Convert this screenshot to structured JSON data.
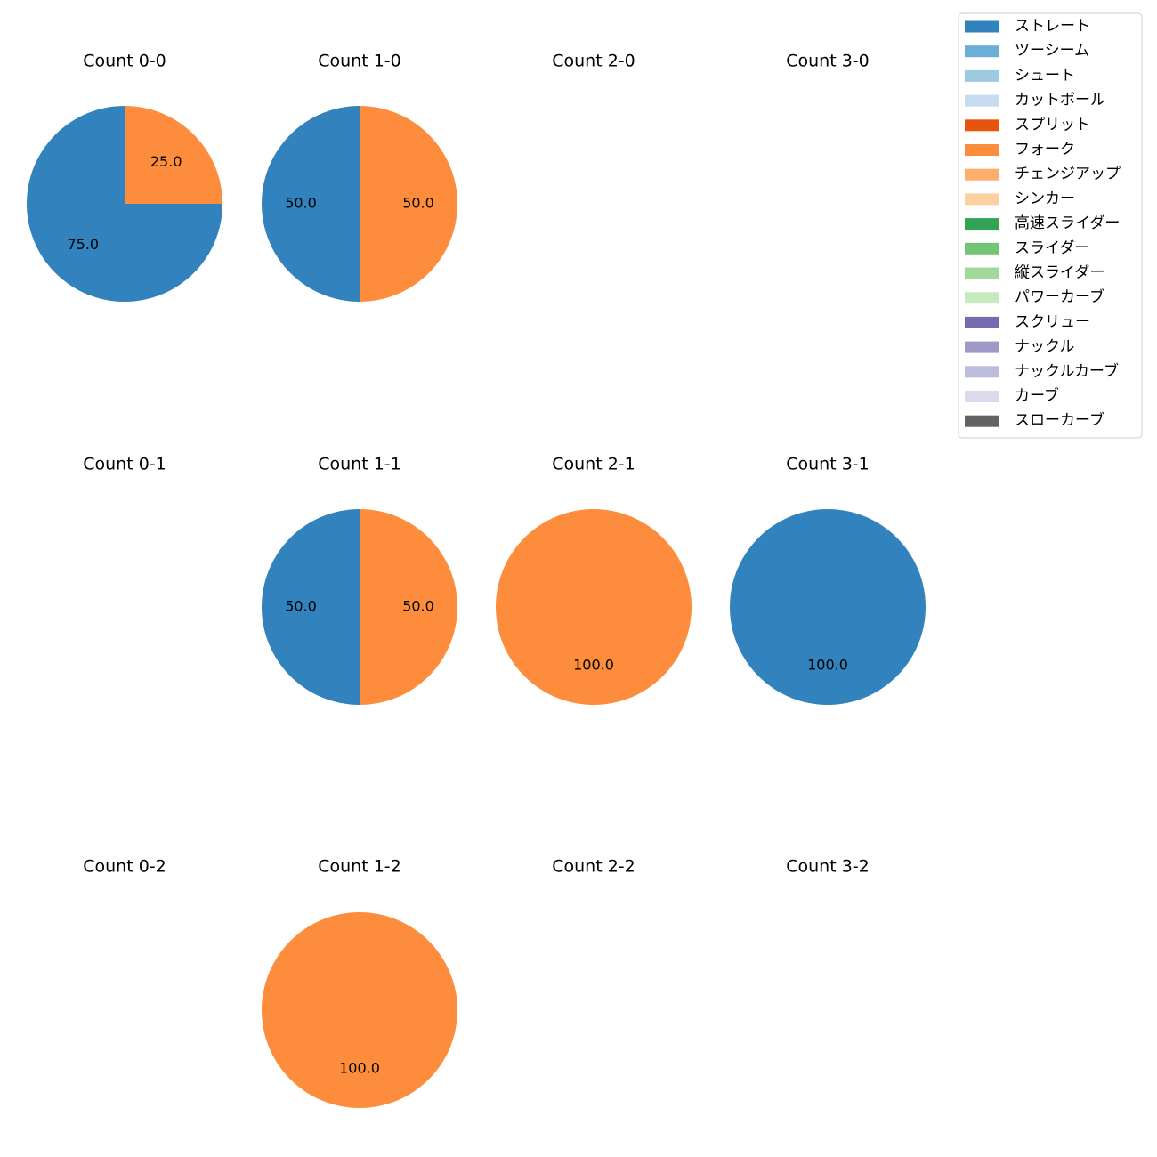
{
  "chart_data": {
    "type": "pie",
    "legend": {
      "placement": "top-right",
      "entries": [
        {
          "label": "ストレート",
          "color": "#3182bd"
        },
        {
          "label": "ツーシーム",
          "color": "#6baed6"
        },
        {
          "label": "シュート",
          "color": "#9ecae1"
        },
        {
          "label": "カットボール",
          "color": "#c6dbef"
        },
        {
          "label": "スプリット",
          "color": "#e6550d"
        },
        {
          "label": "フォーク",
          "color": "#fd8d3c"
        },
        {
          "label": "チェンジアップ",
          "color": "#fdae6b"
        },
        {
          "label": "シンカー",
          "color": "#fdd0a2"
        },
        {
          "label": "高速スライダー",
          "color": "#31a354"
        },
        {
          "label": "スライダー",
          "color": "#74c476"
        },
        {
          "label": "縦スライダー",
          "color": "#a1d99b"
        },
        {
          "label": "パワーカーブ",
          "color": "#c7e9c0"
        },
        {
          "label": "スクリュー",
          "color": "#756bb1"
        },
        {
          "label": "ナックル",
          "color": "#9e9ac8"
        },
        {
          "label": "ナックルカーブ",
          "color": "#bcbddc"
        },
        {
          "label": "カーブ",
          "color": "#dadaeb"
        },
        {
          "label": "スローカーブ",
          "color": "#636363"
        }
      ]
    },
    "panels": [
      {
        "title": "Count 0-0",
        "slices": [
          {
            "pitch": "ストレート",
            "value": 75.0,
            "label": "75.0"
          },
          {
            "pitch": "フォーク",
            "value": 25.0,
            "label": "25.0"
          }
        ]
      },
      {
        "title": "Count 1-0",
        "slices": [
          {
            "pitch": "ストレート",
            "value": 50.0,
            "label": "50.0"
          },
          {
            "pitch": "フォーク",
            "value": 50.0,
            "label": "50.0"
          }
        ]
      },
      {
        "title": "Count 2-0",
        "slices": []
      },
      {
        "title": "Count 3-0",
        "slices": []
      },
      {
        "title": "Count 0-1",
        "slices": []
      },
      {
        "title": "Count 1-1",
        "slices": [
          {
            "pitch": "ストレート",
            "value": 50.0,
            "label": "50.0"
          },
          {
            "pitch": "フォーク",
            "value": 50.0,
            "label": "50.0"
          }
        ]
      },
      {
        "title": "Count 2-1",
        "slices": [
          {
            "pitch": "フォーク",
            "value": 100.0,
            "label": "100.0"
          }
        ]
      },
      {
        "title": "Count 3-1",
        "slices": [
          {
            "pitch": "ストレート",
            "value": 100.0,
            "label": "100.0"
          }
        ]
      },
      {
        "title": "Count 0-2",
        "slices": []
      },
      {
        "title": "Count 1-2",
        "slices": [
          {
            "pitch": "フォーク",
            "value": 100.0,
            "label": "100.0"
          }
        ]
      },
      {
        "title": "Count 2-2",
        "slices": []
      },
      {
        "title": "Count 3-2",
        "slices": []
      }
    ]
  }
}
